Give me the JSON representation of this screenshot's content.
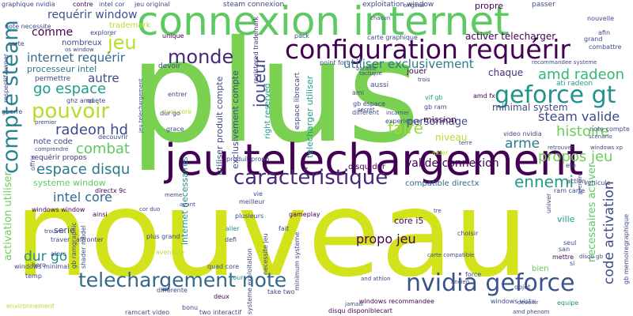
{
  "words": [
    {
      "text": "plus",
      "color": "#7ad151"
    },
    {
      "text": "nouveau",
      "color": "#d2e21b"
    },
    {
      "text": "jeu telechargement",
      "color": "#440154"
    },
    {
      "text": "connexion internet",
      "color": "#5ec962"
    },
    {
      "text": "configuration requérir",
      "color": "#440154"
    },
    {
      "text": "geforce gt",
      "color": "#21918c"
    },
    {
      "text": "caractéristique",
      "color": "#482878"
    },
    {
      "text": "nvidia geforce",
      "color": "#3b528b"
    },
    {
      "text": "telechargement note",
      "color": "#31688e"
    },
    {
      "text": "compte steam",
      "color": "#26828e"
    },
    {
      "text": "pouvoir",
      "color": "#b5de2b"
    },
    {
      "text": "monde",
      "color": "#482878"
    },
    {
      "text": "jeu",
      "color": "#b5de2b"
    },
    {
      "text": "go espace",
      "color": "#1f9e89"
    },
    {
      "text": "requérir window",
      "color": "#3b528b"
    },
    {
      "text": "internet requérir",
      "color": "#31688e"
    },
    {
      "text": "processeur intel",
      "color": "#2a788e"
    },
    {
      "text": "amd radeon",
      "color": "#35b779"
    },
    {
      "text": "steam valide",
      "color": "#3e4a89"
    },
    {
      "text": "histoire",
      "color": "#6ece58"
    },
    {
      "text": "radeon hd",
      "color": "#3e4a89"
    },
    {
      "text": "faire",
      "color": "#9fda3a"
    },
    {
      "text": "combat",
      "color": "#5ec962"
    },
    {
      "text": "espace disqu",
      "color": "#2a788e"
    },
    {
      "text": "intel core",
      "color": "#31688e"
    },
    {
      "text": "ennemi",
      "color": "#1f9e89"
    },
    {
      "text": "utiliser exclusivement",
      "color": "#2a788e"
    },
    {
      "text": "joueur",
      "color": "#3e4a89"
    },
    {
      "text": "propos jeu",
      "color": "#6ece58"
    },
    {
      "text": "arme",
      "color": "#2a788e"
    },
    {
      "text": "valide connexion",
      "color": "#440154"
    },
    {
      "text": "code activation",
      "color": "#3e4a89"
    },
    {
      "text": "activer telecharger",
      "color": "#440154"
    },
    {
      "text": "dur go",
      "color": "#21918c"
    },
    {
      "text": "propo jeu",
      "color": "#440154"
    },
    {
      "text": "comme",
      "color": "#440154"
    },
    {
      "text": "autre",
      "color": "#3e4a89"
    },
    {
      "text": "personnage",
      "color": "#3e4a89"
    },
    {
      "text": "mission",
      "color": "#440154"
    },
    {
      "text": "niveau",
      "color": "#b5de2b"
    },
    {
      "text": "chaque",
      "color": "#472d7b"
    },
    {
      "text": "minimal system",
      "color": "#3e4a89"
    },
    {
      "text": "utiliser produit compte",
      "color": "#3e4a89"
    },
    {
      "text": "exclusivement compte",
      "color": "#3e4a89"
    },
    {
      "text": "systeme window",
      "color": "#5ec962"
    },
    {
      "text": "note code",
      "color": "#3e4a89"
    },
    {
      "text": "requérir propos",
      "color": "#472d7b"
    },
    {
      "text": "compatible directx",
      "color": "#31688e"
    },
    {
      "text": "disqu dur",
      "color": "#440154"
    },
    {
      "text": "activation utiliser",
      "color": "#6ece58"
    },
    {
      "text": "internet necessaires",
      "color": "#21918c"
    },
    {
      "text": "necessaires activer",
      "color": "#5ec962"
    },
    {
      "text": "serie",
      "color": "#3e4a89"
    },
    {
      "text": "core i5",
      "color": "#440154"
    },
    {
      "text": "ville",
      "color": "#1f9e89"
    },
    {
      "text": "steam connexion",
      "color": "#3e4a89"
    },
    {
      "text": "exploitation window",
      "color": "#3e4a89"
    },
    {
      "text": "propre",
      "color": "#440154"
    },
    {
      "text": "passer",
      "color": "#3e4a89"
    },
    {
      "text": "trademark",
      "color": "#b5de2b"
    },
    {
      "text": "contre",
      "color": "#440154"
    },
    {
      "text": "nombreux",
      "color": "#3e4a89"
    },
    {
      "text": "permettre",
      "color": "#3e4a89"
    },
    {
      "text": "ghz amd",
      "color": "#3e4a89"
    },
    {
      "text": "quete",
      "color": "#3e4a89"
    },
    {
      "text": "devoir",
      "color": "#3e4a89"
    },
    {
      "text": "pack",
      "color": "#3e4a89"
    },
    {
      "text": "unique",
      "color": "#440154"
    },
    {
      "text": "right reserved",
      "color": "#1f9e89"
    },
    {
      "text": "registered trademark",
      "color": "#472d7b"
    },
    {
      "text": "telecharger utiliser",
      "color": "#1f9e89"
    },
    {
      "text": "espace librecart",
      "color": "#3e4a89"
    },
    {
      "text": "jouer",
      "color": "#440154"
    },
    {
      "text": "aussi",
      "color": "#3e4a89"
    },
    {
      "text": "ami",
      "color": "#3e4a89"
    },
    {
      "text": "gb espace",
      "color": "#3e4a89"
    },
    {
      "text": "different",
      "color": "#3e4a89"
    },
    {
      "text": "entrer",
      "color": "#3e4a89"
    },
    {
      "text": "vif gb",
      "color": "#1f9e89"
    },
    {
      "text": "amd fx",
      "color": "#440154"
    },
    {
      "text": "ati radeon",
      "color": "#1f9e89"
    },
    {
      "text": "video nvidia",
      "color": "#3e4a89"
    },
    {
      "text": "windows xp",
      "color": "#3e4a89"
    },
    {
      "text": "directx 9c",
      "color": "#440154"
    },
    {
      "text": "windows window",
      "color": "#440154"
    },
    {
      "text": "ainsi",
      "color": "#440154"
    },
    {
      "text": "meilleur",
      "color": "#3e4a89"
    },
    {
      "text": "gameplay",
      "color": "#440154"
    },
    {
      "text": "aller",
      "color": "#21918c"
    },
    {
      "text": "fait",
      "color": "#3e4a89"
    },
    {
      "text": "choisir",
      "color": "#3e4a89"
    },
    {
      "text": "defi",
      "color": "#3e4a89"
    },
    {
      "text": "aventure",
      "color": "#b5de2b"
    },
    {
      "text": "seul",
      "color": "#3e4a89"
    },
    {
      "text": "mettre",
      "color": "#440154"
    },
    {
      "text": "bien",
      "color": "#5ec962"
    },
    {
      "text": "si",
      "color": "#3e4a89"
    },
    {
      "text": "objet",
      "color": "#3e4a89"
    },
    {
      "text": "equipe",
      "color": "#21918c"
    },
    {
      "text": "force",
      "color": "#3e4a89"
    },
    {
      "text": "differente",
      "color": "#3e4a89"
    },
    {
      "text": "deux",
      "color": "#440154"
    },
    {
      "text": "cour",
      "color": "#1f9e89"
    },
    {
      "text": "take two",
      "color": "#3e4a89"
    },
    {
      "text": "windows minimal",
      "color": "#3e4a89"
    },
    {
      "text": "alors",
      "color": "#3e4a89"
    },
    {
      "text": "temp",
      "color": "#3e4a89"
    },
    {
      "text": "hero",
      "color": "#3e4a89"
    },
    {
      "text": "traver",
      "color": "#3e4a89"
    },
    {
      "text": "windows recommandee",
      "color": "#440154"
    },
    {
      "text": "windows vista",
      "color": "#3e4a89"
    },
    {
      "text": "disqu disponiblecart",
      "color": "#440154"
    },
    {
      "text": "ramcart video",
      "color": "#3e4a89"
    },
    {
      "text": "two interactif",
      "color": "#3e4a89"
    },
    {
      "text": "systeme exploitation",
      "color": "#3e4a89"
    },
    {
      "text": "necessite jeu",
      "color": "#3e4a89"
    },
    {
      "text": "minimum systeme",
      "color": "#3e4a89"
    },
    {
      "text": "dual core",
      "color": "#b5de2b"
    },
    {
      "text": "quad core",
      "color": "#3e4a89"
    },
    {
      "text": "plus grand",
      "color": "#3e4a89"
    },
    {
      "text": "plusieurs",
      "color": "#3e4a89"
    },
    {
      "text": "bonu",
      "color": "#3e4a89"
    },
    {
      "text": "graphique nvidia",
      "color": "#3e4a89"
    },
    {
      "text": "intel cor",
      "color": "#3e4a89"
    },
    {
      "text": "jeu original",
      "color": "#3e4a89"
    },
    {
      "text": "note necessite",
      "color": "#3e4a89"
    },
    {
      "text": "carte",
      "color": "#3e4a89"
    },
    {
      "text": "os window",
      "color": "#3e4a89"
    },
    {
      "text": "explorer",
      "color": "#3e4a89"
    },
    {
      "text": "carte graphique",
      "color": "#3e4a89"
    },
    {
      "text": "recommandee systeme",
      "color": "#3e4a89"
    },
    {
      "text": "point fort",
      "color": "#3e4a89"
    },
    {
      "text": "combattre",
      "color": "#3e4a89"
    },
    {
      "text": "grand",
      "color": "#3e4a89"
    },
    {
      "text": "afin",
      "color": "#3e4a89"
    },
    {
      "text": "nouvelle",
      "color": "#3e4a89"
    },
    {
      "text": "respectif owner",
      "color": "#3e4a89"
    },
    {
      "text": "guerre",
      "color": "#3e4a89"
    },
    {
      "text": "vehicule",
      "color": "#3e4a89"
    },
    {
      "text": "ram carte",
      "color": "#3e4a89"
    },
    {
      "text": "action",
      "color": "#3e4a89"
    },
    {
      "text": "disqu gb",
      "color": "#3e4a89"
    },
    {
      "text": "gb memoiregraphique",
      "color": "#3e4a89"
    },
    {
      "text": "note compte",
      "color": "#3e4a89"
    },
    {
      "text": "scenario",
      "color": "#3e4a89"
    },
    {
      "text": "retrouver",
      "color": "#3e4a89"
    },
    {
      "text": "aider",
      "color": "#b5de2b"
    },
    {
      "text": "terre",
      "color": "#3e4a89"
    },
    {
      "text": "experience",
      "color": "#3e4a89"
    },
    {
      "text": "incarner",
      "color": "#3e4a89"
    },
    {
      "text": "gb ram",
      "color": "#3e4a89"
    },
    {
      "text": "grace",
      "color": "#3e4a89"
    },
    {
      "text": "dur go",
      "color": "#3e4a89"
    },
    {
      "text": "gb ramgraphic",
      "color": "#3e4a89"
    },
    {
      "text": "shader model",
      "color": "#3e4a89"
    },
    {
      "text": "affronter",
      "color": "#3e4a89"
    },
    {
      "text": "trouver",
      "color": "#3e4a89"
    },
    {
      "text": "offrir",
      "color": "#3e4a89"
    },
    {
      "text": "comprendre",
      "color": "#3e4a89"
    },
    {
      "text": "decouvrir",
      "color": "#3e4a89"
    },
    {
      "text": "produit propo",
      "color": "#3e4a89"
    },
    {
      "text": "san",
      "color": "#3e4a89"
    },
    {
      "text": "ancien",
      "color": "#3e4a89"
    },
    {
      "text": "carte compatible",
      "color": "#3e4a89"
    },
    {
      "text": "univer",
      "color": "#3e4a89"
    },
    {
      "text": "devenir",
      "color": "#3e4a89"
    },
    {
      "text": "amd phenom",
      "color": "#3e4a89"
    },
    {
      "text": "environnement",
      "color": "#b5de2b"
    },
    {
      "text": "tactique",
      "color": "#3e4a89"
    },
    {
      "text": "secret",
      "color": "#3e4a89"
    },
    {
      "text": "premier",
      "color": "#3e4a89"
    },
    {
      "text": "chacun",
      "color": "#3e4a89"
    },
    {
      "text": "bataille",
      "color": "#3e4a89"
    },
    {
      "text": "trois",
      "color": "#3e4a89"
    },
    {
      "text": "jamais",
      "color": "#3e4a89"
    },
    {
      "text": "vie",
      "color": "#3e4a89"
    },
    {
      "text": "ete",
      "color": "#3e4a89"
    },
    {
      "text": "cor duo",
      "color": "#3e4a89"
    },
    {
      "text": "meme",
      "color": "#3e4a89"
    },
    {
      "text": "avant",
      "color": "#3e4a89"
    },
    {
      "text": "tre",
      "color": "#3e4a89"
    },
    {
      "text": "prendre",
      "color": "#3e4a89"
    },
    {
      "text": "jeu telechargement",
      "color": "#3e4a89"
    },
    {
      "text": "and athlon",
      "color": "#3e4a89"
    },
    {
      "text": "original",
      "color": "#3e4a89"
    }
  ]
}
